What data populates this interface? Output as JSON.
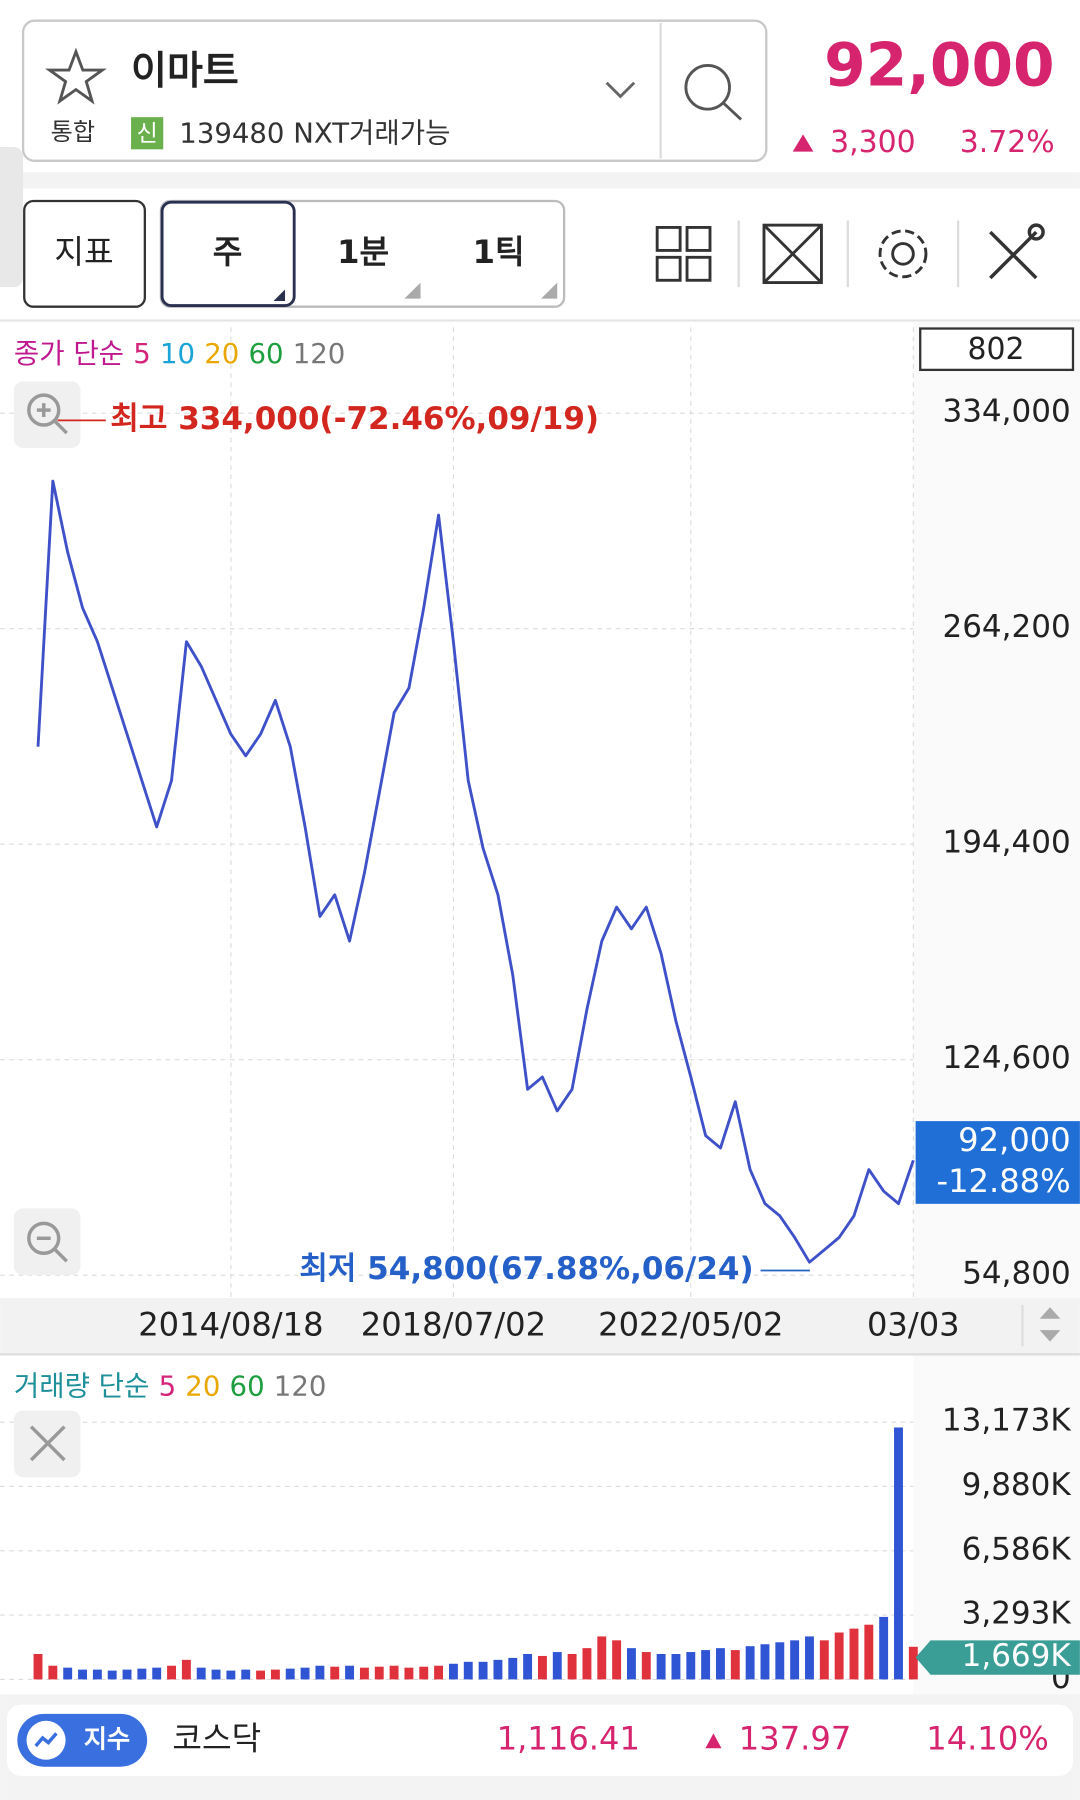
{
  "header": {
    "stock_name": "이마트",
    "market": "통합",
    "badge": "신",
    "code": "139480 NXT거래가능",
    "price": "92,000",
    "change": "3,300",
    "change_percent": "3.72%"
  },
  "toolbar": {
    "indicator_button": "지표",
    "period_buttons": [
      "주",
      "1분",
      "1틱"
    ]
  },
  "chart_data": [
    {
      "type": "line",
      "legend_title": "종가 단순",
      "legend_title_color": "#c2188f",
      "legend": [
        {
          "label": "5",
          "color": "#d4237a"
        },
        {
          "label": "10",
          "color": "#1aa3d6"
        },
        {
          "label": "20",
          "color": "#e8a800"
        },
        {
          "label": "60",
          "color": "#1e9e3e"
        },
        {
          "label": "120",
          "color": "#777777"
        }
      ],
      "counter": "802",
      "categories": [
        null,
        null,
        null,
        null,
        null,
        null,
        null,
        null,
        null,
        null,
        null,
        null,
        null,
        "2014/08/18",
        null,
        null,
        null,
        null,
        null,
        null,
        null,
        null,
        null,
        null,
        null,
        null,
        null,
        null,
        "2018/07/02",
        null,
        null,
        null,
        null,
        null,
        null,
        null,
        null,
        null,
        null,
        null,
        null,
        null,
        null,
        null,
        "2022/05/02",
        null,
        null,
        null,
        null,
        null,
        null,
        null,
        null,
        null,
        null,
        null,
        null,
        null,
        null,
        "03/03"
      ],
      "values": [
        226000,
        312000,
        289000,
        271000,
        260000,
        245000,
        230000,
        215000,
        200000,
        215000,
        260000,
        252000,
        241000,
        230000,
        223000,
        230000,
        241000,
        226000,
        200000,
        171000,
        178000,
        163000,
        185000,
        211000,
        237000,
        245000,
        271000,
        301000,
        260000,
        215000,
        193000,
        178000,
        152000,
        115000,
        119000,
        108000,
        115000,
        141000,
        163000,
        174000,
        167000,
        174000,
        159000,
        137000,
        119000,
        100000,
        96000,
        111000,
        89000,
        78000,
        74000,
        67000,
        59000,
        63000,
        67000,
        74000,
        89000,
        82000,
        78000,
        92000
      ],
      "color": "#3f51c9",
      "ylim": [
        47400,
        361800
      ],
      "yticks": [
        {
          "value": 54800,
          "label": "54,800"
        },
        {
          "value": 124600,
          "label": "124,600"
        },
        {
          "value": 194400,
          "label": "194,400"
        },
        {
          "value": 264200,
          "label": "264,200"
        },
        {
          "value": 334000,
          "label": "334,000"
        }
      ],
      "grid": true,
      "high_annotation": "최고 334,000(-72.46%,09/19)",
      "low_annotation": "최저 54,800(67.88%,06/24)",
      "current_price_label": "92,000",
      "current_change_label": "-12.88%"
    },
    {
      "type": "bar",
      "legend_title": "거래량 단순",
      "legend_title_color": "#1d8f9a",
      "legend": [
        {
          "label": "5",
          "color": "#d4237a"
        },
        {
          "label": "20",
          "color": "#e8a800"
        },
        {
          "label": "60",
          "color": "#1e9e3e"
        },
        {
          "label": "120",
          "color": "#777777"
        }
      ],
      "values": [
        1300000,
        700000,
        600000,
        500000,
        500000,
        450000,
        500000,
        550000,
        600000,
        700000,
        1000000,
        600000,
        500000,
        450000,
        500000,
        450000,
        500000,
        550000,
        600000,
        700000,
        650000,
        700000,
        600000,
        650000,
        700000,
        600000,
        650000,
        700000,
        800000,
        900000,
        900000,
        1000000,
        1100000,
        1300000,
        1200000,
        1400000,
        1300000,
        1600000,
        2200000,
        2000000,
        1600000,
        1400000,
        1300000,
        1300000,
        1400000,
        1500000,
        1600000,
        1500000,
        1700000,
        1800000,
        1900000,
        2000000,
        2200000,
        2000000,
        2400000,
        2600000,
        2800000,
        3200000,
        12900000,
        1669000
      ],
      "up_color": "#e0323c",
      "down_color": "#2f55d4",
      "ylim": [
        0,
        14000000
      ],
      "yticks": [
        {
          "value": 0,
          "label": "0"
        },
        {
          "value": 3293000,
          "label": "3,293K"
        },
        {
          "value": 6586000,
          "label": "6,586K"
        },
        {
          "value": 9880000,
          "label": "9,880K"
        },
        {
          "value": 13173000,
          "label": "13,173K"
        }
      ],
      "grid": true,
      "current_label": "1,669K"
    }
  ],
  "index_bar": {
    "button": "지수",
    "name": "코스닥",
    "value": "1,116.41",
    "change": "137.97",
    "change_percent": "14.10%"
  }
}
